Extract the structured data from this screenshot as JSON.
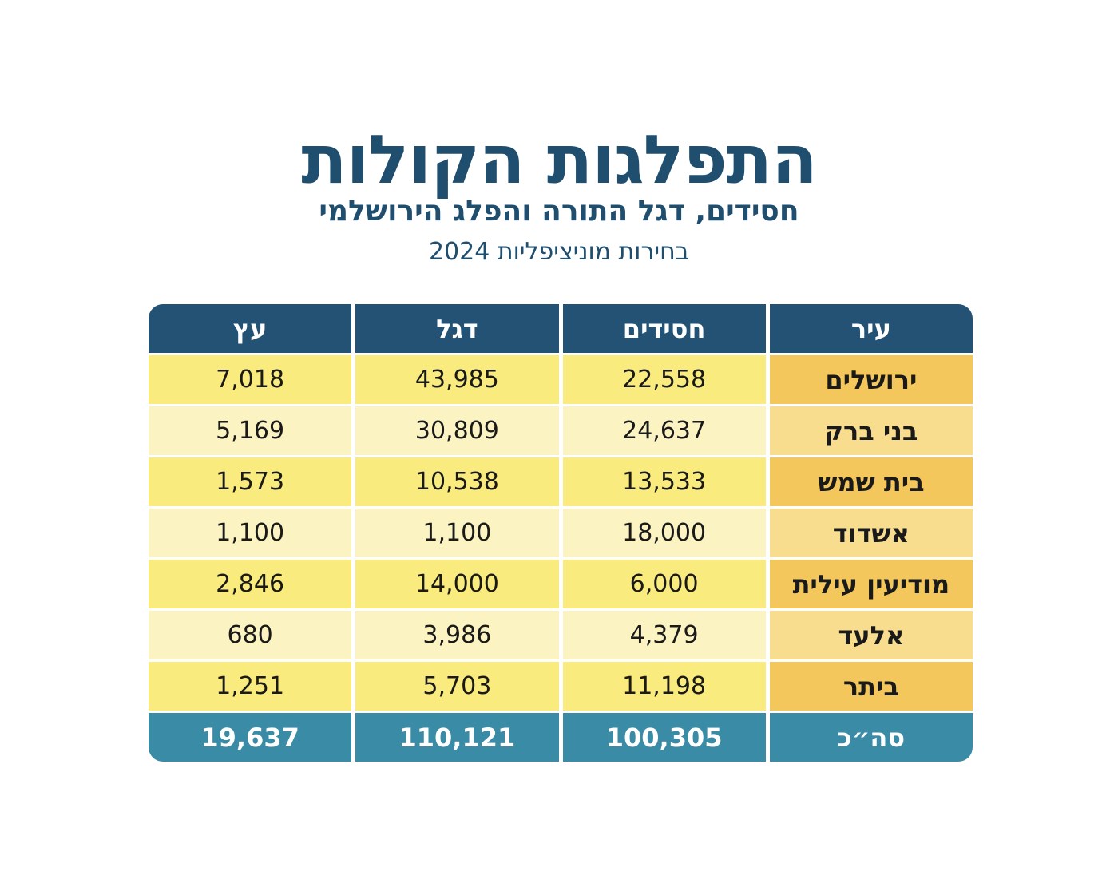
{
  "header": {
    "title": "התפלגות הקולות",
    "subtitle": "חסידים, דגל התורה והפלג הירושלמי",
    "caption": "בחירות מוניציפליות 2024"
  },
  "colors": {
    "title": "#1f4e6e",
    "header_bg": "#245274",
    "total_bg": "#3a8ba6",
    "city_odd": "#f3c75c",
    "city_even": "#f8dd8e",
    "cell_odd": "#f9eb7d",
    "cell_even": "#fbf4c2"
  },
  "chart_data": {
    "type": "table",
    "title": "התפלגות הקולות",
    "subtitle": "חסידים, דגל התורה והפלג הירושלמי",
    "columns": [
      "עיר",
      "חסידים",
      "דגל",
      "עץ"
    ],
    "rows": [
      {
        "city": "ירושלים",
        "values": [
          "22,558",
          "43,985",
          "7,018"
        ]
      },
      {
        "city": "בני ברק",
        "values": [
          "24,637",
          "30,809",
          "5,169"
        ]
      },
      {
        "city": "בית שמש",
        "values": [
          "13,533",
          "10,538",
          "1,573"
        ]
      },
      {
        "city": "אשדוד",
        "values": [
          "18,000",
          "1,100",
          "1,100"
        ]
      },
      {
        "city": "מודיעין עילית",
        "values": [
          "6,000",
          "14,000",
          "2,846"
        ]
      },
      {
        "city": "אלעד",
        "values": [
          "4,379",
          "3,986",
          "680"
        ]
      },
      {
        "city": "ביתר",
        "values": [
          "11,198",
          "5,703",
          "1,251"
        ]
      }
    ],
    "total": {
      "label": "סה״כ",
      "values": [
        "100,305",
        "110,121",
        "19,637"
      ]
    }
  }
}
